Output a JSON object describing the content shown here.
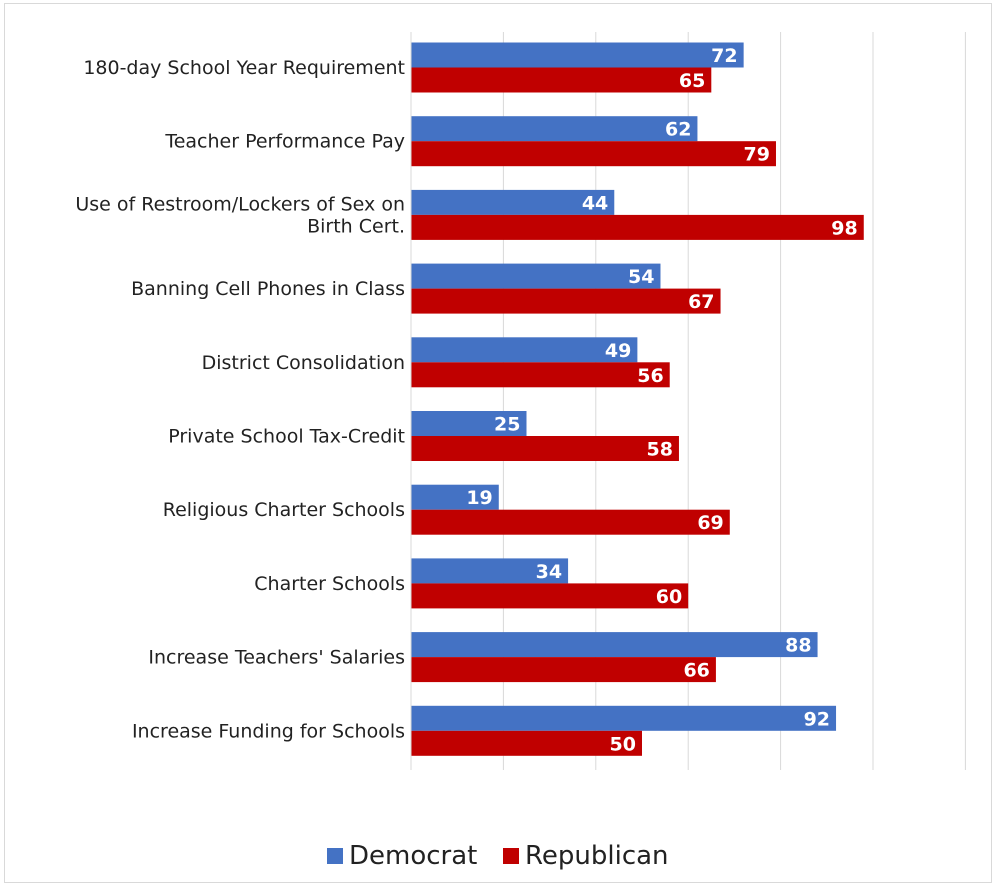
{
  "chart_data": {
    "type": "bar",
    "orientation": "horizontal",
    "categories": [
      "180-day School Year Requirement",
      "Teacher Performance Pay",
      "Use of Restroom/Lockers of Sex on Birth Cert.",
      "Banning Cell Phones in Class",
      "District Consolidation",
      "Private School Tax-Credit",
      "Religious Charter Schools",
      "Charter Schools",
      "Increase Teachers' Salaries",
      "Increase Funding for Schools"
    ],
    "category_lines": [
      [
        "180-day School Year Requirement"
      ],
      [
        "Teacher Performance Pay"
      ],
      [
        "Use of Restroom/Lockers of Sex on",
        "Birth Cert."
      ],
      [
        "Banning Cell Phones in Class"
      ],
      [
        "District Consolidation"
      ],
      [
        "Private School Tax-Credit"
      ],
      [
        "Religious Charter Schools"
      ],
      [
        "Charter Schools"
      ],
      [
        "Increase Teachers' Salaries"
      ],
      [
        "Increase Funding for Schools"
      ]
    ],
    "series": [
      {
        "name": "Democrat",
        "color": "#4472C4",
        "values": [
          72,
          62,
          44,
          54,
          49,
          25,
          19,
          34,
          88,
          92
        ]
      },
      {
        "name": "Republican",
        "color": "#C00000",
        "values": [
          65,
          79,
          98,
          67,
          56,
          58,
          69,
          60,
          66,
          50
        ]
      }
    ],
    "xlim": [
      0,
      120
    ],
    "grid": true,
    "legend_position": "bottom",
    "data_labels": true,
    "title": "",
    "xlabel": "",
    "ylabel": ""
  }
}
